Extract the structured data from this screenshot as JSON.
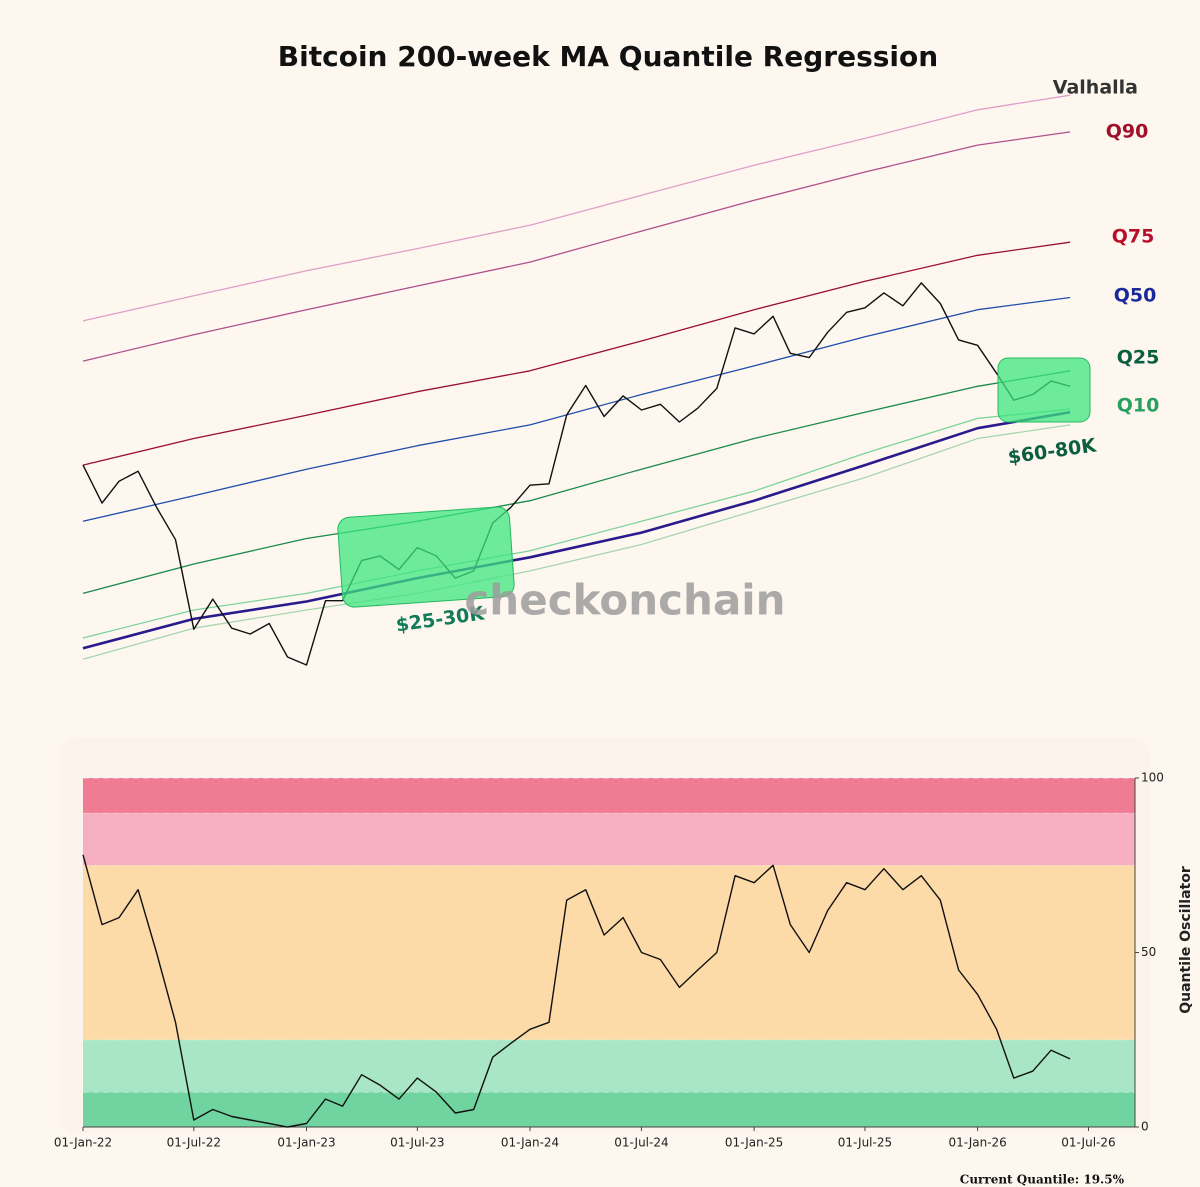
{
  "chart_data": [
    {
      "type": "line",
      "title": "Bitcoin 200-week MA Quantile Regression",
      "log_scale": true,
      "ylim": [
        15250,
        353000
      ],
      "xlim": [
        "2022-01-01",
        "2026-09-15"
      ],
      "x": [
        "2022-01-01",
        "2022-02-01",
        "2022-03-01",
        "2022-04-01",
        "2022-05-01",
        "2022-06-01",
        "2022-07-01",
        "2022-08-01",
        "2022-09-01",
        "2022-10-01",
        "2022-11-01",
        "2022-12-01",
        "2023-01-01",
        "2023-02-01",
        "2023-03-01",
        "2023-04-01",
        "2023-05-01",
        "2023-06-01",
        "2023-07-01",
        "2023-08-01",
        "2023-09-01",
        "2023-10-01",
        "2023-11-01",
        "2023-12-01",
        "2024-01-01",
        "2024-02-01",
        "2024-03-01",
        "2024-04-01",
        "2024-05-01",
        "2024-06-01",
        "2024-07-01",
        "2024-08-01",
        "2024-09-01",
        "2024-10-01",
        "2024-11-01",
        "2024-12-01",
        "2025-01-01",
        "2025-02-01",
        "2025-03-01",
        "2025-04-01",
        "2025-05-01",
        "2025-06-01",
        "2025-07-01",
        "2025-08-01",
        "2025-09-01",
        "2025-10-01",
        "2025-11-01",
        "2025-12-01",
        "2026-01-01",
        "2026-02-01",
        "2026-03-01",
        "2026-04-01",
        "2026-05-01",
        "2026-06-01"
      ],
      "series": [
        {
          "color": "#111111",
          "values": [
            47000,
            38500,
            43200,
            45500,
            37700,
            31800,
            19900,
            23300,
            20000,
            19400,
            20500,
            17200,
            16500,
            23100,
            23100,
            28500,
            29200,
            27200,
            30500,
            29200,
            26000,
            27000,
            34700,
            37700,
            42300,
            42600,
            61100,
            71300,
            60600,
            67500,
            62700,
            64600,
            58900,
            63300,
            70200,
            96400,
            93400,
            102400,
            84400,
            82500,
            94200,
            104600,
            107100,
            115800,
            108200,
            122000,
            109500,
            90500,
            88000,
            76000,
            66000,
            68000,
            73000,
            71000
          ]
        }
      ],
      "bands": {
        "x": [
          "2022-01-01",
          "2022-07-01",
          "2023-01-01",
          "2023-07-01",
          "2024-01-01",
          "2024-07-01",
          "2025-01-01",
          "2025-07-01",
          "2026-01-01",
          "2026-06-01"
        ],
        "series": [
          {
            "name": "Valhalla",
            "color": "#dfa0c8",
            "label_color": "#333333",
            "values": [
              100000,
              114000,
              130000,
              146000,
              165000,
              193000,
              226000,
              260000,
              302000,
              326000
            ]
          },
          {
            "name": "Q90",
            "color": "#b0508a",
            "label_color": "#a0102a",
            "values": [
              81000,
              93000,
              106000,
              120000,
              136000,
              160000,
              188000,
              218000,
              251000,
              269000
            ]
          },
          {
            "name": "Q75",
            "color": "#9a1030",
            "label_color": "#b8102a",
            "values": [
              47000,
              54000,
              61000,
              69000,
              77000,
              90000,
              106000,
              123000,
              141000,
              151000
            ]
          },
          {
            "name": "Q50",
            "color": "#1f4faa",
            "label_color": "#1a2a9a",
            "values": [
              35000,
              40000,
              46000,
              52000,
              58000,
              68000,
              79000,
              92000,
              106000,
              113000
            ]
          },
          {
            "name": "Q25",
            "color": "#1a8a4a",
            "label_color": "#0b5e3e",
            "values": [
              24000,
              28000,
              32000,
              35000,
              39000,
              46000,
              54000,
              62000,
              71000,
              77000
            ]
          },
          {
            "name": "Q10",
            "color": "#7ed39a",
            "label_color": "#2aa060",
            "values": [
              19000,
              22000,
              24000,
              27000,
              30000,
              35000,
              41000,
              50000,
              60000,
              63000
            ]
          },
          {
            "color": "#2a1a8c",
            "values": [
              18000,
              21000,
              23000,
              26000,
              29000,
              33000,
              39000,
              47000,
              57000,
              62000
            ]
          },
          {
            "color": "#a6d6b0",
            "values": [
              17000,
              20000,
              22000,
              24000,
              27000,
              31000,
              37000,
              44000,
              54000,
              58000
            ]
          }
        ]
      },
      "annotations": [
        "$25-30K",
        "$60-80K"
      ],
      "watermark": "checkonchain"
    },
    {
      "type": "line",
      "ylabel": "Quantile Oscillator",
      "ylim": [
        0,
        100
      ],
      "yticks": [
        0,
        50,
        100
      ],
      "xlim": [
        "2022-01-01",
        "2026-09-15"
      ],
      "xticks": [
        {
          "value": "2022-01-01",
          "label": "01-Jan-22"
        },
        {
          "value": "2022-07-01",
          "label": "01-Jul-22"
        },
        {
          "value": "2023-01-01",
          "label": "01-Jan-23"
        },
        {
          "value": "2023-07-01",
          "label": "01-Jul-23"
        },
        {
          "value": "2024-01-01",
          "label": "01-Jan-24"
        },
        {
          "value": "2024-07-01",
          "label": "01-Jul-24"
        },
        {
          "value": "2025-01-01",
          "label": "01-Jan-25"
        },
        {
          "value": "2025-07-01",
          "label": "01-Jul-25"
        },
        {
          "value": "2026-01-01",
          "label": "01-Jan-26"
        },
        {
          "value": "2026-07-01",
          "label": "01-Jul-26"
        }
      ],
      "zones": [
        {
          "from": 0,
          "to": 10,
          "color": "#6fd4a0"
        },
        {
          "from": 10,
          "to": 25,
          "color": "#a8e6c6"
        },
        {
          "from": 25,
          "to": 75,
          "color": "#fcdba8"
        },
        {
          "from": 75,
          "to": 90,
          "color": "#f6afc0"
        },
        {
          "from": 90,
          "to": 100,
          "color": "#f07c94"
        }
      ],
      "x": [
        "2022-01-01",
        "2022-02-01",
        "2022-03-01",
        "2022-04-01",
        "2022-05-01",
        "2022-06-01",
        "2022-07-01",
        "2022-08-01",
        "2022-09-01",
        "2022-10-01",
        "2022-11-01",
        "2022-12-01",
        "2023-01-01",
        "2023-02-01",
        "2023-03-01",
        "2023-04-01",
        "2023-05-01",
        "2023-06-01",
        "2023-07-01",
        "2023-08-01",
        "2023-09-01",
        "2023-10-01",
        "2023-11-01",
        "2023-12-01",
        "2024-01-01",
        "2024-02-01",
        "2024-03-01",
        "2024-04-01",
        "2024-05-01",
        "2024-06-01",
        "2024-07-01",
        "2024-08-01",
        "2024-09-01",
        "2024-10-01",
        "2024-11-01",
        "2024-12-01",
        "2025-01-01",
        "2025-02-01",
        "2025-03-01",
        "2025-04-01",
        "2025-05-01",
        "2025-06-01",
        "2025-07-01",
        "2025-08-01",
        "2025-09-01",
        "2025-10-01",
        "2025-11-01",
        "2025-12-01",
        "2026-01-01",
        "2026-02-01",
        "2026-03-01",
        "2026-04-01",
        "2026-05-01",
        "2026-06-01"
      ],
      "series": [
        {
          "color": "#111111",
          "values": [
            78,
            58,
            60,
            68,
            50,
            30,
            2,
            5,
            3,
            2,
            1,
            0,
            1,
            8,
            6,
            15,
            12,
            8,
            14,
            10,
            4,
            5,
            20,
            24,
            28,
            30,
            65,
            68,
            55,
            60,
            50,
            48,
            40,
            45,
            50,
            72,
            70,
            75,
            58,
            50,
            62,
            70,
            68,
            74,
            68,
            72,
            65,
            45,
            38,
            28,
            14,
            16,
            22,
            19.5
          ]
        }
      ],
      "annotation": "Current Quantile: 19.5%"
    }
  ]
}
